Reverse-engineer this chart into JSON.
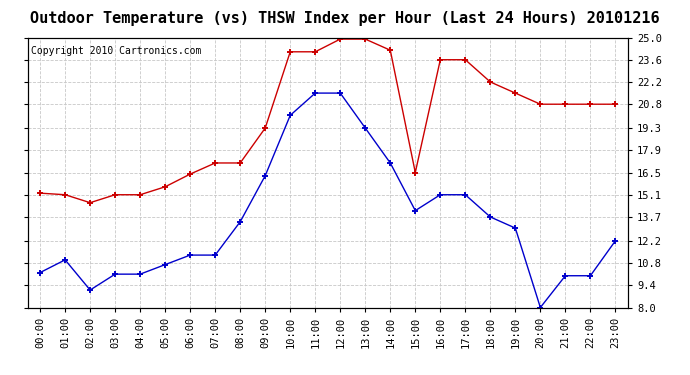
{
  "title": "Outdoor Temperature (vs) THSW Index per Hour (Last 24 Hours) 20101216",
  "copyright": "Copyright 2010 Cartronics.com",
  "hours": [
    0,
    1,
    2,
    3,
    4,
    5,
    6,
    7,
    8,
    9,
    10,
    11,
    12,
    13,
    14,
    15,
    16,
    17,
    18,
    19,
    20,
    21,
    22,
    23
  ],
  "hour_labels": [
    "00:00",
    "01:00",
    "02:00",
    "03:00",
    "04:00",
    "05:00",
    "06:00",
    "07:00",
    "08:00",
    "09:00",
    "10:00",
    "11:00",
    "12:00",
    "13:00",
    "14:00",
    "15:00",
    "16:00",
    "17:00",
    "18:00",
    "19:00",
    "20:00",
    "21:00",
    "22:00",
    "23:00"
  ],
  "red_data": [
    15.2,
    15.1,
    14.6,
    15.1,
    15.1,
    15.6,
    16.4,
    17.1,
    17.1,
    19.3,
    24.1,
    24.1,
    24.9,
    24.9,
    24.2,
    16.5,
    23.6,
    23.6,
    22.2,
    21.5,
    20.8,
    20.8,
    20.8,
    20.8
  ],
  "blue_data": [
    10.2,
    11.0,
    9.1,
    10.1,
    10.1,
    10.7,
    11.3,
    11.3,
    13.4,
    16.3,
    20.1,
    21.5,
    21.5,
    19.3,
    17.1,
    14.1,
    15.1,
    15.1,
    13.7,
    13.0,
    8.0,
    10.0,
    10.0,
    12.2
  ],
  "red_color": "#cc0000",
  "blue_color": "#0000cc",
  "bg_color": "#ffffff",
  "grid_color": "#c8c8c8",
  "ylim": [
    8.0,
    25.0
  ],
  "yticks": [
    8.0,
    9.4,
    10.8,
    12.2,
    13.7,
    15.1,
    16.5,
    17.9,
    19.3,
    20.8,
    22.2,
    23.6,
    25.0
  ],
  "title_fontsize": 11,
  "copyright_fontsize": 7,
  "tick_fontsize": 7.5
}
